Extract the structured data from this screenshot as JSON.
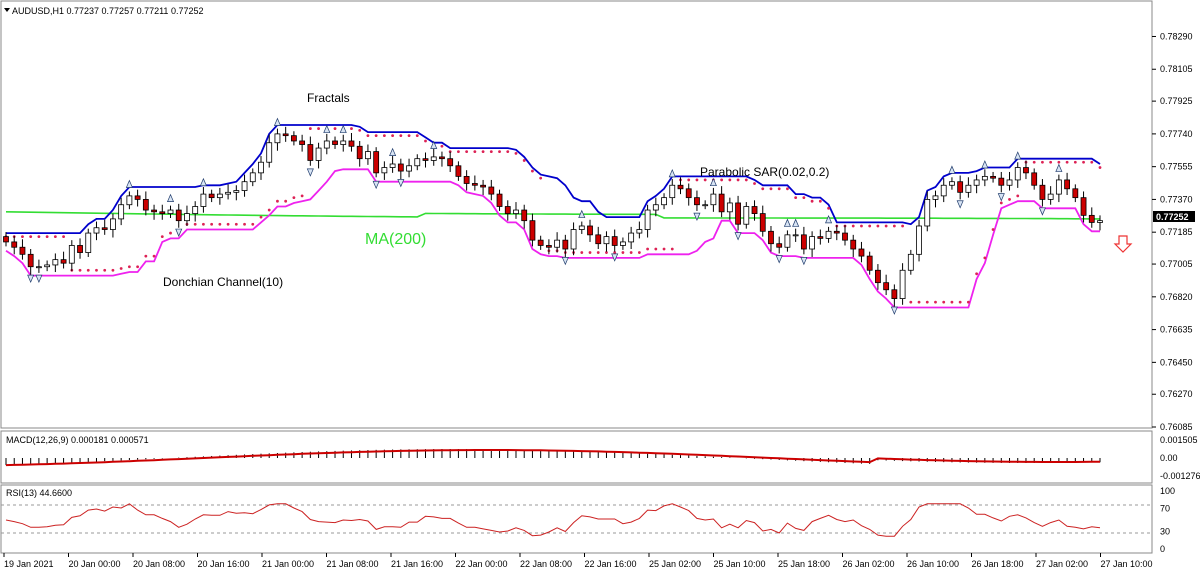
{
  "header": {
    "symbol_line": "AUDUSD,H1  0.77237 0.77257 0.77211 0.77252",
    "macd_label": "MACD(12,26,9) 0.000181 0.000571",
    "rsi_label": "RSI(13) 44.6600"
  },
  "annotations": {
    "fractals": "Fractals",
    "parabolic": "Parabolic SAR(0.02,0.2)",
    "ma": "MA(200)",
    "donchian": "Donchian Channel(10)"
  },
  "price_badge": "0.77252",
  "colors": {
    "up_candle": "#ffffff",
    "down_candle": "#cc0000",
    "donchian_upper": "#0000cc",
    "donchian_lower": "#ee22ee",
    "ma": "#33dd33",
    "sar": "#dd2255",
    "macd_signal": "#cc0000",
    "rsi_line": "#cc2222",
    "arrow_down": "#ee3333"
  },
  "icons": {
    "fractal_marker": "small-triangle-icon",
    "sell_signal": "arrow-down-icon"
  },
  "chart_data": [
    {
      "type": "candlestick",
      "name": "AUDUSD,H1",
      "y_ticks": [
        "0.78290",
        "0.78105",
        "0.77925",
        "0.77740",
        "0.77555",
        "0.77370",
        "0.77185",
        "0.77005",
        "0.76820",
        "0.76635",
        "0.76450",
        "0.76270",
        "0.76085"
      ],
      "ylim": [
        0.76085,
        0.784
      ],
      "x_ticks": [
        "19 Jan 2021",
        "20 Jan 00:00",
        "20 Jan 08:00",
        "20 Jan 16:00",
        "21 Jan 00:00",
        "21 Jan 08:00",
        "21 Jan 16:00",
        "22 Jan 00:00",
        "22 Jan 08:00",
        "22 Jan 16:00",
        "25 Jan 02:00",
        "25 Jan 10:00",
        "25 Jan 18:00",
        "26 Jan 02:00",
        "26 Jan 10:00",
        "26 Jan 18:00",
        "27 Jan 02:00",
        "27 Jan 10:00"
      ],
      "close": [
        0.7713,
        0.771,
        0.7706,
        0.7699,
        0.7699,
        0.77,
        0.7703,
        0.7701,
        0.7711,
        0.7707,
        0.7718,
        0.7721,
        0.772,
        0.7726,
        0.7734,
        0.7739,
        0.7737,
        0.7731,
        0.773,
        0.7729,
        0.7731,
        0.7725,
        0.7729,
        0.7733,
        0.774,
        0.7738,
        0.774,
        0.7741,
        0.7742,
        0.7747,
        0.7752,
        0.7758,
        0.7769,
        0.7774,
        0.7773,
        0.777,
        0.7768,
        0.7759,
        0.7766,
        0.777,
        0.7768,
        0.777,
        0.7767,
        0.776,
        0.7764,
        0.7752,
        0.7755,
        0.7757,
        0.7753,
        0.7756,
        0.776,
        0.7759,
        0.7761,
        0.776,
        0.7756,
        0.775,
        0.7746,
        0.7745,
        0.7744,
        0.774,
        0.7733,
        0.7729,
        0.7731,
        0.7725,
        0.7714,
        0.7711,
        0.771,
        0.7714,
        0.7709,
        0.772,
        0.7722,
        0.7717,
        0.7712,
        0.7716,
        0.7711,
        0.7713,
        0.7718,
        0.772,
        0.7731,
        0.7734,
        0.7738,
        0.7745,
        0.7743,
        0.7738,
        0.7734,
        0.7734,
        0.774,
        0.773,
        0.7735,
        0.7723,
        0.7733,
        0.7729,
        0.7719,
        0.7712,
        0.771,
        0.7717,
        0.7717,
        0.7709,
        0.7716,
        0.7715,
        0.7719,
        0.7718,
        0.7714,
        0.7709,
        0.7705,
        0.7697,
        0.769,
        0.7686,
        0.7681,
        0.7697,
        0.7706,
        0.7722,
        0.7737,
        0.7739,
        0.7745,
        0.7747,
        0.7741,
        0.7745,
        0.7748,
        0.775,
        0.7749,
        0.7745,
        0.7748,
        0.7755,
        0.7752,
        0.7745,
        0.7737,
        0.774,
        0.7748,
        0.7743,
        0.7738,
        0.7728,
        0.7724,
        0.7725
      ],
      "fractals_up_count": 22,
      "fractals_down_count": 20
    },
    {
      "type": "line",
      "name": "MACD(12,26,9)",
      "values_text": [
        "0.000181",
        "0.000571"
      ],
      "y_ticks": [
        "0.001505",
        "0.00",
        "-0.001276"
      ]
    },
    {
      "type": "line",
      "name": "RSI(13)",
      "current": 44.66,
      "y_ticks": [
        "100",
        "70",
        "30",
        "0"
      ],
      "levels": [
        70,
        30
      ]
    }
  ]
}
